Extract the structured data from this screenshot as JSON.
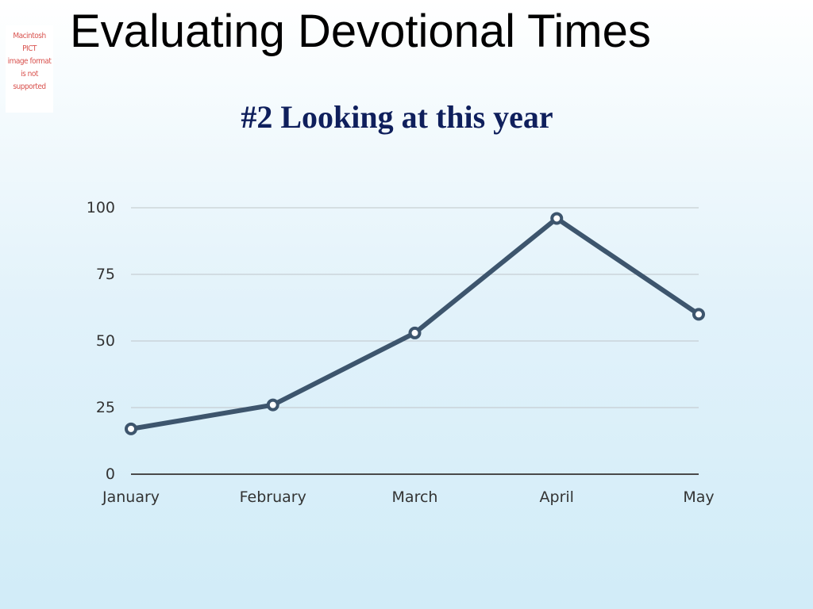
{
  "placeholder_image": {
    "text": "Macintosh PICT\nimage format\nis not supported"
  },
  "slide": {
    "title": "Evaluating Devotional Times",
    "subtitle": "#2 Looking at this year"
  },
  "chart_data": {
    "type": "line",
    "title": "",
    "xlabel": "",
    "ylabel": "",
    "categories": [
      "January",
      "February",
      "March",
      "April",
      "May"
    ],
    "series": [
      {
        "values": [
          17,
          26,
          53,
          96,
          60
        ]
      }
    ],
    "ylim": [
      0,
      100
    ],
    "yticks": [
      0,
      25,
      50,
      75,
      100
    ],
    "grid": true,
    "legend": "none",
    "colors": {
      "line": "#3d556d",
      "marker_fill": "#ffffff",
      "gridline": "#bfc5c9",
      "baseline": "#4a4a4a"
    }
  }
}
